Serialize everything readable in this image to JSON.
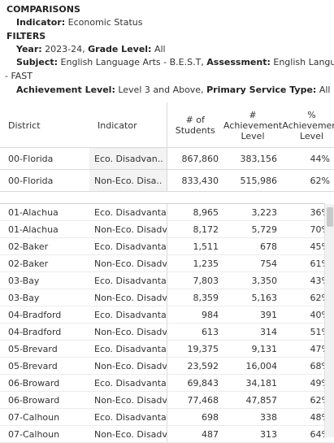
{
  "comparisons": {
    "title": "COMPARISONS",
    "indicator_label": "Indicator:",
    "indicator_value": "Economic Status"
  },
  "filters": {
    "title": "FILTERS",
    "year_label": "Year:",
    "year_value": "2023-24,",
    "grade_label": "Grade Level:",
    "grade_value": "All",
    "subject_label": "Subject:",
    "subject_value": "English Language Arts - B.E.S.T,",
    "assessment_label": "Assessment:",
    "assessment_value": "English Language Arts",
    "assessment_cont": "- FAST",
    "achievement_label": "Achievement Level:",
    "achievement_value": "Level 3 and Above,",
    "pst_label": "Primary Service Type:",
    "pst_value": "All"
  },
  "columns": {
    "district": "District",
    "indicator": "Indicator",
    "students_1": "# of",
    "students_2": "Students",
    "ach_1": "#",
    "ach_2": "Achievement",
    "ach_3": "Level",
    "pct_1": "%",
    "pct_2": "Achievement",
    "pct_3": "Level"
  },
  "florida_rows": [
    {
      "district": "00-Florida",
      "indicator": "Eco. Disadvan..",
      "students": "867,860",
      "achievement": "383,156",
      "percent": "44%"
    },
    {
      "district": "00-Florida",
      "indicator": "Non-Eco. Disa..",
      "students": "833,430",
      "achievement": "515,986",
      "percent": "62%"
    }
  ],
  "rows": [
    {
      "district": "01-Alachua",
      "indicator": "Eco. Disadvanta..",
      "students": "8,965",
      "achievement": "3,223",
      "percent": "36%"
    },
    {
      "district": "01-Alachua",
      "indicator": "Non-Eco. Disadv..",
      "students": "8,172",
      "achievement": "5,729",
      "percent": "70%"
    },
    {
      "district": "02-Baker",
      "indicator": "Eco. Disadvanta..",
      "students": "1,511",
      "achievement": "678",
      "percent": "45%"
    },
    {
      "district": "02-Baker",
      "indicator": "Non-Eco. Disadv..",
      "students": "1,235",
      "achievement": "754",
      "percent": "61%"
    },
    {
      "district": "03-Bay",
      "indicator": "Eco. Disadvanta..",
      "students": "7,803",
      "achievement": "3,350",
      "percent": "43%"
    },
    {
      "district": "03-Bay",
      "indicator": "Non-Eco. Disadv..",
      "students": "8,359",
      "achievement": "5,163",
      "percent": "62%"
    },
    {
      "district": "04-Bradford",
      "indicator": "Eco. Disadvanta..",
      "students": "984",
      "achievement": "391",
      "percent": "40%"
    },
    {
      "district": "04-Bradford",
      "indicator": "Non-Eco. Disadv..",
      "students": "613",
      "achievement": "314",
      "percent": "51%"
    },
    {
      "district": "05-Brevard",
      "indicator": "Eco. Disadvanta..",
      "students": "19,375",
      "achievement": "9,131",
      "percent": "47%"
    },
    {
      "district": "05-Brevard",
      "indicator": "Non-Eco. Disadv..",
      "students": "23,592",
      "achievement": "16,004",
      "percent": "68%"
    },
    {
      "district": "06-Broward",
      "indicator": "Eco. Disadvanta..",
      "students": "69,843",
      "achievement": "34,181",
      "percent": "49%"
    },
    {
      "district": "06-Broward",
      "indicator": "Non-Eco. Disadv..",
      "students": "77,468",
      "achievement": "47,857",
      "percent": "62%"
    },
    {
      "district": "07-Calhoun",
      "indicator": "Eco. Disadvanta..",
      "students": "698",
      "achievement": "338",
      "percent": "48%"
    },
    {
      "district": "07-Calhoun",
      "indicator": "Non-Eco. Disadv..",
      "students": "487",
      "achievement": "313",
      "percent": "64%"
    }
  ]
}
